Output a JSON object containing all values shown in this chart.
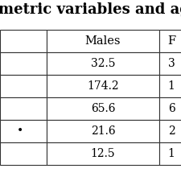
{
  "title": "metric variables and ag",
  "title_fontsize": 13,
  "title_fontweight": "bold",
  "columns": [
    "",
    "Males",
    "F"
  ],
  "rows": [
    [
      "",
      "32.5",
      "3"
    ],
    [
      "",
      "174.2",
      "1"
    ],
    [
      "",
      "65.6",
      "6"
    ],
    [
      "•",
      "21.6",
      "2"
    ],
    [
      "",
      "12.5",
      "1"
    ]
  ],
  "background_color": "#ffffff",
  "text_color": "#000000",
  "font_size": 10,
  "header_font_size": 10.5
}
